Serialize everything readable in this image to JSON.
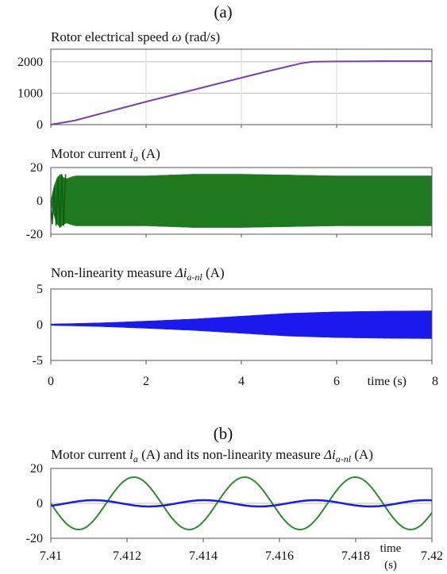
{
  "part_a_label": "(a)",
  "part_b_label": "(b)",
  "chart_data": [
    {
      "type": "line",
      "title_parts": {
        "main": "Rotor electrical speed ",
        "sym": "ω",
        "unit": " (rad/s)"
      },
      "xlim": [
        0,
        8
      ],
      "ylim": [
        0,
        2400
      ],
      "yticks": [
        0,
        1000,
        2000
      ],
      "x": [
        0,
        0.5,
        1,
        1.5,
        2,
        2.5,
        3,
        3.5,
        4,
        4.5,
        5,
        5.25,
        5.5,
        6,
        6.5,
        7,
        7.5,
        8
      ],
      "series": [
        {
          "values": [
            0,
            130,
            330,
            530,
            730,
            920,
            1110,
            1300,
            1490,
            1680,
            1860,
            1950,
            2000,
            2010,
            2015,
            2020,
            2020,
            2020
          ]
        }
      ],
      "color": "#7b3fb0"
    },
    {
      "type": "line",
      "title_parts": {
        "main": "Motor current ",
        "sym": "i",
        "sub": "a",
        "unit": " (A)"
      },
      "xlim": [
        0,
        8
      ],
      "ylim": [
        -20,
        20
      ],
      "yticks": [
        -20,
        0,
        20
      ],
      "envelope_x": [
        0,
        0.1,
        0.2,
        0.3,
        0.5,
        1,
        2,
        3,
        4,
        5,
        6,
        7,
        8
      ],
      "envelope_amp": [
        0,
        13,
        16,
        13,
        15,
        15,
        15,
        16,
        16,
        15.5,
        15,
        15,
        15
      ],
      "color": "#1f7a1f"
    },
    {
      "type": "line",
      "title_parts": {
        "main": "Non-linearity measure ",
        "sym": "Δi",
        "sub": "a-nl",
        "unit": " (A)"
      },
      "xlim": [
        0,
        8
      ],
      "ylim": [
        -5,
        5
      ],
      "yticks": [
        -5,
        0,
        5
      ],
      "xticks": [
        0,
        2,
        4,
        6,
        8
      ],
      "xlabel": "time (s)",
      "envelope_x": [
        0,
        1,
        2,
        3,
        4,
        5,
        6,
        7,
        8
      ],
      "envelope_amp": [
        0.1,
        0.25,
        0.5,
        0.8,
        1.2,
        1.6,
        1.8,
        1.9,
        1.95
      ],
      "color": "#1a1aee"
    },
    {
      "type": "line",
      "title_parts": {
        "main": "Motor current ",
        "sym": "i",
        "sub": "a",
        "unit": " (A) and its non-linearity measure ",
        "sym2": "Δi",
        "sub2": "a-nl",
        "unit2": " (A)"
      },
      "xlim": [
        7.41,
        7.42
      ],
      "ylim": [
        -20,
        20
      ],
      "yticks": [
        -20,
        0,
        20
      ],
      "xticks": [
        "7.41",
        "7.412",
        "7.414",
        "7.416",
        "7.418",
        "7.42"
      ],
      "xlabel": "time",
      "xlabel_unit": "(s)",
      "series": [
        {
          "name": "i_a",
          "amplitude": 15,
          "period": 0.002905,
          "phase_zero": 7.41,
          "color": "#2e8b2e"
        },
        {
          "name": "delta_i_a_nl",
          "amplitude": 1.8,
          "period": 0.002905,
          "phase_zero": 7.4104,
          "color": "#1a1aee"
        }
      ]
    }
  ]
}
